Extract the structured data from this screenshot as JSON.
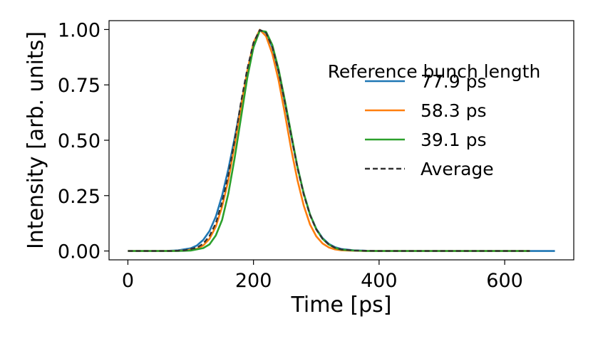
{
  "chart_data": {
    "type": "line",
    "xlabel": "Time [ps]",
    "ylabel": "Intensity [arb. units]",
    "xlim": [
      -30,
      710
    ],
    "ylim": [
      -0.04,
      1.04
    ],
    "xticks": [
      0,
      200,
      400,
      600
    ],
    "xtick_labels": [
      "0",
      "200",
      "400",
      "600"
    ],
    "yticks": [
      0,
      0.25,
      0.5,
      0.75,
      1.0
    ],
    "ytick_labels": [
      "0.00",
      "0.25",
      "0.50",
      "0.75",
      "1.00"
    ],
    "grid": false,
    "legend": {
      "title": "Reference bunch length",
      "placement": "top-right",
      "frame": false
    },
    "series": [
      {
        "name": "77.9 ps",
        "color": "#1f77b4",
        "dash": "solid",
        "x": [
          0,
          60,
          80,
          100,
          110,
          120,
          130,
          140,
          150,
          160,
          170,
          180,
          190,
          200,
          210,
          220,
          230,
          240,
          250,
          260,
          270,
          280,
          290,
          300,
          310,
          320,
          330,
          340,
          360,
          380,
          400,
          450,
          500,
          550,
          600,
          650,
          680
        ],
        "y": [
          0,
          0,
          0.003,
          0.012,
          0.025,
          0.05,
          0.09,
          0.155,
          0.25,
          0.37,
          0.51,
          0.66,
          0.8,
          0.92,
          0.998,
          0.985,
          0.92,
          0.81,
          0.67,
          0.52,
          0.38,
          0.26,
          0.165,
          0.1,
          0.058,
          0.032,
          0.017,
          0.009,
          0.003,
          0.001,
          0,
          0,
          0,
          0,
          0,
          0,
          0
        ]
      },
      {
        "name": "58.3 ps",
        "color": "#ff7f0e",
        "dash": "solid",
        "x": [
          0,
          70,
          90,
          110,
          120,
          130,
          140,
          150,
          160,
          170,
          180,
          190,
          200,
          210,
          220,
          230,
          240,
          250,
          260,
          270,
          280,
          290,
          300,
          310,
          320,
          330,
          340,
          360,
          380,
          400,
          450,
          500,
          550,
          600,
          640
        ],
        "y": [
          0,
          0,
          0.002,
          0.01,
          0.025,
          0.055,
          0.11,
          0.2,
          0.32,
          0.48,
          0.65,
          0.81,
          0.94,
          0.999,
          0.97,
          0.89,
          0.77,
          0.62,
          0.46,
          0.32,
          0.205,
          0.12,
          0.066,
          0.034,
          0.016,
          0.007,
          0.003,
          0.001,
          0,
          0,
          0,
          0,
          0,
          0,
          0
        ]
      },
      {
        "name": "39.1 ps",
        "color": "#2ca02c",
        "dash": "solid",
        "x": [
          0,
          80,
          100,
          120,
          130,
          140,
          150,
          160,
          170,
          180,
          190,
          200,
          210,
          220,
          230,
          240,
          250,
          260,
          270,
          280,
          290,
          300,
          310,
          320,
          330,
          340,
          360,
          380,
          400,
          450,
          500,
          550,
          600,
          640
        ],
        "y": [
          0,
          0,
          0.002,
          0.013,
          0.03,
          0.07,
          0.14,
          0.26,
          0.42,
          0.6,
          0.78,
          0.92,
          0.995,
          0.99,
          0.93,
          0.82,
          0.68,
          0.53,
          0.38,
          0.26,
          0.165,
          0.098,
          0.055,
          0.029,
          0.014,
          0.006,
          0.002,
          0,
          0,
          0,
          0,
          0,
          0,
          0
        ]
      },
      {
        "name": "Average",
        "color": "#333333",
        "dash": "dashed",
        "x": [
          0,
          70,
          90,
          110,
          120,
          130,
          140,
          150,
          160,
          170,
          180,
          190,
          200,
          210,
          220,
          230,
          240,
          250,
          260,
          270,
          280,
          290,
          300,
          310,
          320,
          330,
          340,
          360,
          380,
          400,
          450,
          500,
          550,
          600,
          640
        ],
        "y": [
          0,
          0,
          0.003,
          0.015,
          0.033,
          0.068,
          0.125,
          0.22,
          0.345,
          0.5,
          0.67,
          0.82,
          0.94,
          0.998,
          0.985,
          0.92,
          0.81,
          0.67,
          0.52,
          0.375,
          0.255,
          0.162,
          0.097,
          0.055,
          0.029,
          0.014,
          0.007,
          0.002,
          0.001,
          0,
          0,
          0,
          0,
          0,
          0
        ]
      }
    ]
  }
}
